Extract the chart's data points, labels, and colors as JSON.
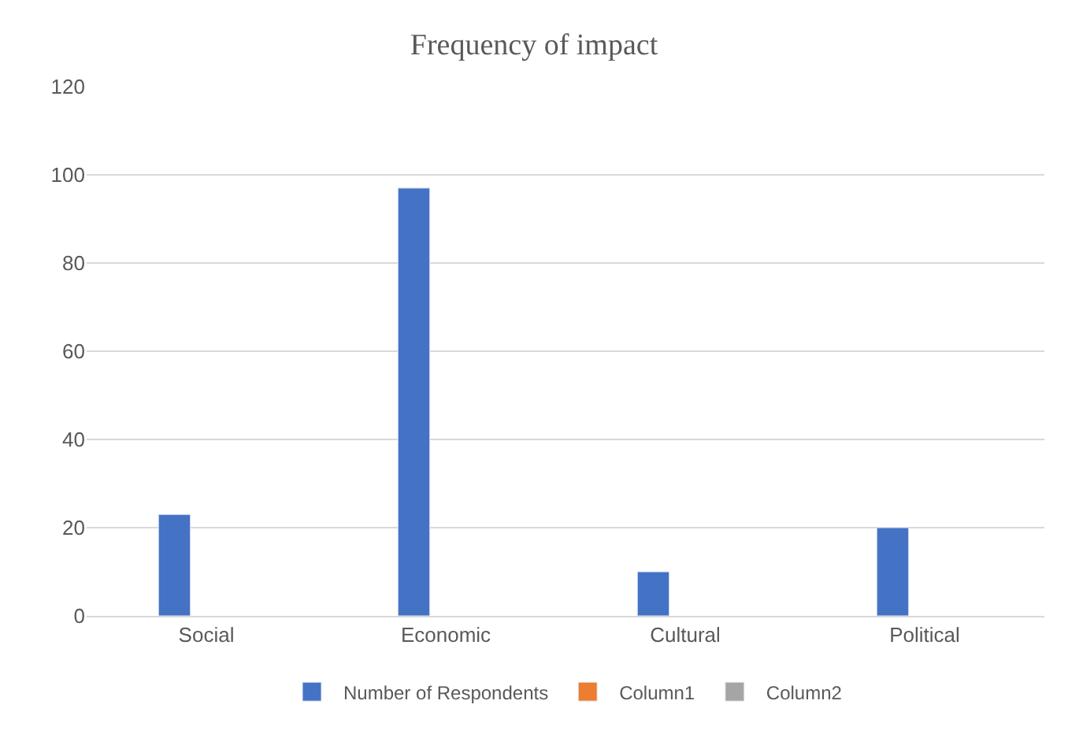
{
  "chart_data": {
    "type": "bar",
    "title": "Frequency of impact",
    "categories": [
      "Social",
      "Economic",
      "Cultural",
      "Political"
    ],
    "series": [
      {
        "name": "Number of Respondents",
        "color": "#4472c4",
        "values": [
          23,
          97,
          10,
          20
        ]
      },
      {
        "name": "Column1",
        "color": "#ed7d31",
        "values": [
          null,
          null,
          null,
          null
        ]
      },
      {
        "name": "Column2",
        "color": "#a5a5a5",
        "values": [
          null,
          null,
          null,
          null
        ]
      }
    ],
    "ylim": [
      0,
      120
    ],
    "yticks": [
      0,
      20,
      40,
      60,
      80,
      100,
      120
    ],
    "grid": "y",
    "legend": "bottom"
  }
}
